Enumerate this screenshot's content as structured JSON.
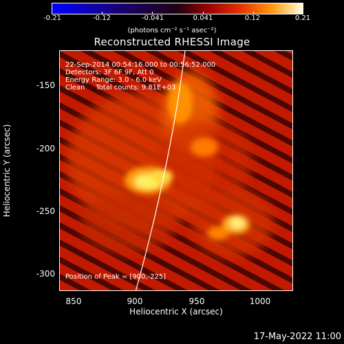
{
  "colorbar": {
    "ticks": [
      "-0.21",
      "-0.12",
      "-0.041",
      "0.041",
      "0.12",
      "0.21"
    ],
    "units": "(photons cm⁻² s⁻¹ asec⁻²)"
  },
  "title": "Reconstructed RHESSI Image",
  "annotations": {
    "time_range": "22-Sep-2014 00:54:16.000 to 00:56:52.000",
    "detectors": "Detectors: 3F 6F 9F, Att 0",
    "energy": "Energy Range: 3.0 - 6.0 keV",
    "clean": "Clean     Total counts: 9.81E+03",
    "peak": "Position of Peak = [900,-225]"
  },
  "axes": {
    "xlabel": "Heliocentric X (arcsec)",
    "ylabel": "Heliocentric Y (arcsec)",
    "xticks": [
      "850",
      "900",
      "950",
      "1000"
    ],
    "yticks": [
      "-150",
      "-200",
      "-250",
      "-300"
    ]
  },
  "footer": {
    "date": "17-May-2022 11:00"
  },
  "colors": {
    "background": "#000000",
    "limb": "#ffffff"
  }
}
